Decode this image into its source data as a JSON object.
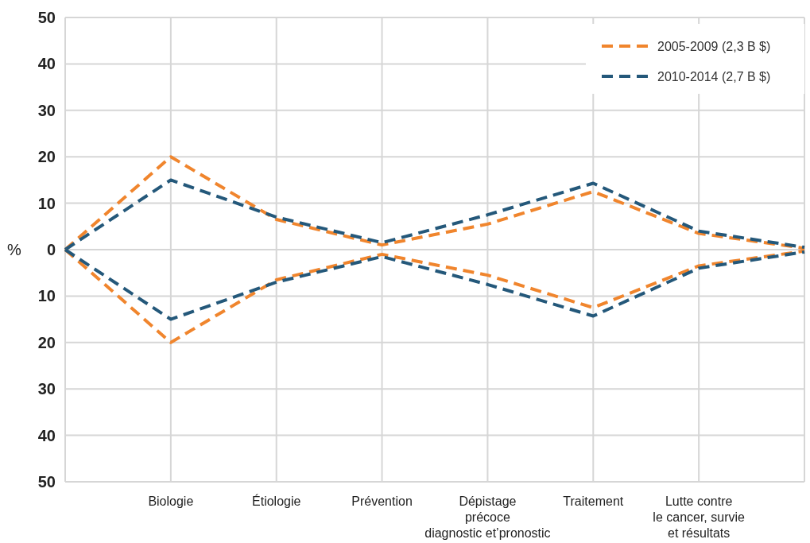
{
  "chart_data": {
    "type": "line",
    "ylabel": "%",
    "categories": [
      null,
      "Biologie",
      "Étiologie",
      "Prévention",
      "Dépistage\nprécoce\ndiagnostic et’pronostic",
      "Traitement",
      "Lutte contre\nle cancer, survie\net résultats",
      null
    ],
    "series": [
      {
        "name": "2005-2009 (2,3 B $)",
        "color": "#f0852d",
        "values": [
          0,
          20,
          6.5,
          1,
          5.5,
          12.5,
          3.5,
          0.3
        ]
      },
      {
        "name": "2010-2014 (2,7 B $)",
        "color": "#24587a",
        "values": [
          0,
          15,
          7,
          1.5,
          7.5,
          14.3,
          4,
          0.5
        ]
      },
      {
        "color": "#f0852d",
        "values": [
          0,
          -20,
          -6.5,
          -1,
          -5.5,
          -12.5,
          -3.5,
          -0.3
        ]
      },
      {
        "color": "#24587a",
        "values": [
          0,
          -15,
          -7,
          -1.5,
          -7.5,
          -14.3,
          -4,
          -0.5
        ]
      }
    ],
    "ylim": [
      -50,
      50
    ],
    "yticks": [
      {
        "value": -50,
        "label": "50"
      },
      {
        "value": -40,
        "label": "40"
      },
      {
        "value": -30,
        "label": "30"
      },
      {
        "value": -20,
        "label": "20"
      },
      {
        "value": -10,
        "label": "10"
      },
      0,
      10,
      20,
      30,
      40,
      50
    ],
    "grid": true,
    "legend": "top right",
    "line_style": "dashed"
  }
}
